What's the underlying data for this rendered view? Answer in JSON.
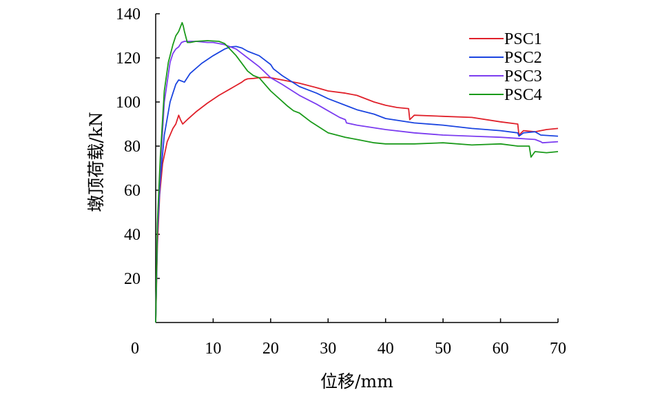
{
  "chart_data": {
    "type": "line",
    "title": "",
    "xlabel": "位移/mm",
    "ylabel": "墩顶荷载/kN",
    "xlim": [
      0,
      70
    ],
    "ylim": [
      0,
      140
    ],
    "x_ticks": [
      0,
      10,
      20,
      30,
      40,
      50,
      60,
      70
    ],
    "y_ticks": [
      20,
      40,
      60,
      80,
      100,
      120,
      140
    ],
    "legend_position": "top-right",
    "grid": false,
    "series": [
      {
        "name": "PSC1",
        "color": "#e0202a",
        "points": [
          [
            0,
            0
          ],
          [
            0.3,
            35
          ],
          [
            0.7,
            58
          ],
          [
            1.2,
            72
          ],
          [
            2,
            82
          ],
          [
            3,
            88
          ],
          [
            3.5,
            90
          ],
          [
            4,
            94
          ],
          [
            4.3,
            92
          ],
          [
            4.7,
            90
          ],
          [
            5.5,
            92
          ],
          [
            7,
            95.5
          ],
          [
            9,
            99.5
          ],
          [
            11,
            103
          ],
          [
            13,
            106
          ],
          [
            14,
            107.5
          ],
          [
            15,
            109
          ],
          [
            15.5,
            110
          ],
          [
            16,
            110.5
          ],
          [
            17,
            110.7
          ],
          [
            18,
            111
          ],
          [
            19,
            111.2
          ],
          [
            20,
            111
          ],
          [
            22,
            110
          ],
          [
            25,
            108.5
          ],
          [
            28,
            106.5
          ],
          [
            30,
            105
          ],
          [
            33,
            104
          ],
          [
            35,
            103
          ],
          [
            38,
            100
          ],
          [
            40,
            98.5
          ],
          [
            42,
            97.5
          ],
          [
            44,
            97
          ],
          [
            44.2,
            92
          ],
          [
            45,
            94
          ],
          [
            50,
            93.5
          ],
          [
            55,
            93
          ],
          [
            60,
            91
          ],
          [
            63,
            90
          ],
          [
            63.2,
            85
          ],
          [
            64,
            87
          ],
          [
            66,
            86.5
          ],
          [
            68,
            87.5
          ],
          [
            70,
            88
          ]
        ]
      },
      {
        "name": "PSC2",
        "color": "#1a44e0",
        "points": [
          [
            0,
            0
          ],
          [
            0.3,
            40
          ],
          [
            0.8,
            65
          ],
          [
            1.5,
            85
          ],
          [
            2.5,
            100
          ],
          [
            3,
            104
          ],
          [
            3.5,
            108
          ],
          [
            4,
            110
          ],
          [
            5,
            109
          ],
          [
            6,
            113
          ],
          [
            8,
            117.5
          ],
          [
            10,
            121
          ],
          [
            12,
            124
          ],
          [
            13,
            125
          ],
          [
            14,
            125.2
          ],
          [
            15,
            124.5
          ],
          [
            16,
            123
          ],
          [
            18,
            121
          ],
          [
            20,
            117
          ],
          [
            20.5,
            115
          ],
          [
            21,
            114
          ],
          [
            22,
            112
          ],
          [
            25,
            107
          ],
          [
            28,
            104
          ],
          [
            30,
            101.5
          ],
          [
            35,
            96.5
          ],
          [
            38,
            94.5
          ],
          [
            40,
            92.5
          ],
          [
            45,
            90.5
          ],
          [
            50,
            89.5
          ],
          [
            55,
            88
          ],
          [
            60,
            87
          ],
          [
            63,
            86
          ],
          [
            63.2,
            84.5
          ],
          [
            64,
            86
          ],
          [
            66,
            86.5
          ],
          [
            67,
            85
          ],
          [
            70,
            84.5
          ]
        ]
      },
      {
        "name": "PSC3",
        "color": "#7b3cf0",
        "points": [
          [
            0,
            0
          ],
          [
            0.3,
            40
          ],
          [
            0.8,
            70
          ],
          [
            1.5,
            100
          ],
          [
            2.5,
            118
          ],
          [
            3,
            122
          ],
          [
            3.5,
            124
          ],
          [
            4,
            125
          ],
          [
            4.5,
            127
          ],
          [
            5,
            127.5
          ],
          [
            7,
            127.5
          ],
          [
            9,
            127
          ],
          [
            10,
            127
          ],
          [
            12,
            126
          ],
          [
            14,
            124
          ],
          [
            16,
            120
          ],
          [
            18,
            116
          ],
          [
            20,
            111
          ],
          [
            22,
            108
          ],
          [
            25,
            103
          ],
          [
            28,
            99
          ],
          [
            30,
            96
          ],
          [
            32,
            93
          ],
          [
            33,
            92
          ],
          [
            33.2,
            90.5
          ],
          [
            35,
            89.5
          ],
          [
            40,
            87.5
          ],
          [
            45,
            86
          ],
          [
            50,
            85
          ],
          [
            55,
            84.5
          ],
          [
            60,
            84
          ],
          [
            63,
            83.5
          ],
          [
            66,
            83
          ],
          [
            67,
            82
          ],
          [
            67.3,
            81.5
          ],
          [
            70,
            82
          ]
        ]
      },
      {
        "name": "PSC4",
        "color": "#1a9a1a",
        "points": [
          [
            0,
            0
          ],
          [
            0.3,
            45
          ],
          [
            0.8,
            75
          ],
          [
            1.5,
            105
          ],
          [
            2.2,
            118
          ],
          [
            3,
            126
          ],
          [
            3.5,
            130
          ],
          [
            4,
            132
          ],
          [
            4.3,
            134
          ],
          [
            4.6,
            136
          ],
          [
            4.8,
            134.5
          ],
          [
            5,
            132
          ],
          [
            5.5,
            127
          ],
          [
            6,
            127
          ],
          [
            7,
            127.5
          ],
          [
            9,
            127.8
          ],
          [
            11,
            127.5
          ],
          [
            12,
            126.5
          ],
          [
            14,
            121
          ],
          [
            16,
            114
          ],
          [
            17,
            112
          ],
          [
            18,
            111
          ],
          [
            20,
            105
          ],
          [
            23,
            98
          ],
          [
            24,
            96
          ],
          [
            25,
            95
          ],
          [
            27,
            91
          ],
          [
            30,
            86
          ],
          [
            33,
            84
          ],
          [
            35,
            83
          ],
          [
            38,
            81.5
          ],
          [
            40,
            81
          ],
          [
            45,
            81
          ],
          [
            50,
            81.5
          ],
          [
            55,
            80.5
          ],
          [
            60,
            81
          ],
          [
            63,
            80
          ],
          [
            65,
            80
          ],
          [
            65.3,
            75
          ],
          [
            66,
            77.5
          ],
          [
            68,
            77
          ],
          [
            70,
            77.5
          ]
        ]
      }
    ]
  }
}
